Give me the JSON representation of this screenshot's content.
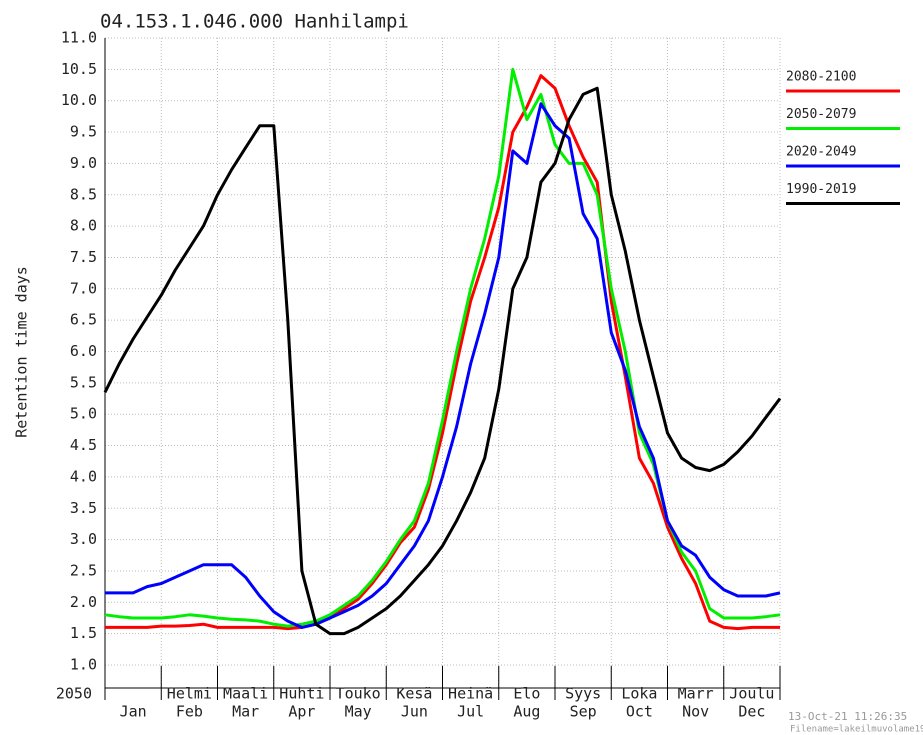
{
  "chart_data": {
    "type": "line",
    "title": "04.153.1.046.000 Hanhilampi",
    "y_label": "Retention time days",
    "year_label": "2050",
    "timestamp": "13-Oct-21 11:26:35",
    "filename": "Filename=lakeilmuvolame19",
    "months": [
      "Jan",
      "Feb",
      "Mar",
      "Apr",
      "May",
      "Jun",
      "Jul",
      "Aug",
      "Sep",
      "Oct",
      "Nov",
      "Dec"
    ],
    "months_fi": [
      null,
      "Helmi",
      "Maali",
      "Huhti",
      "Touko",
      "Kesä",
      "Heinä",
      "Elo",
      "Syys",
      "Loka",
      "Marr",
      "Joulu"
    ],
    "xlim": [
      0,
      12
    ],
    "xticks": [
      0,
      1,
      2,
      3,
      4,
      5,
      6,
      7,
      8,
      9,
      10,
      11,
      12
    ],
    "ylim": [
      1,
      11
    ],
    "yticks": [
      {
        "value": 1,
        "label": "1.0"
      },
      1.5,
      {
        "value": 2,
        "label": "2.0"
      },
      2.5,
      {
        "value": 3,
        "label": "3.0"
      },
      3.5,
      {
        "value": 4,
        "label": "4.0"
      },
      4.5,
      {
        "value": 5,
        "label": "5.0"
      },
      5.5,
      {
        "value": 6,
        "label": "6.0"
      },
      6.5,
      {
        "value": 7,
        "label": "7.0"
      },
      7.5,
      {
        "value": 8,
        "label": "8.0"
      },
      8.5,
      {
        "value": 9,
        "label": "9.0"
      },
      9.5,
      {
        "value": 10,
        "label": "10.0"
      },
      10.5,
      {
        "value": 11,
        "label": "11.0"
      }
    ],
    "grid": true,
    "x": [
      0,
      0.25,
      0.5,
      0.75,
      1,
      1.25,
      1.5,
      1.75,
      2,
      2.25,
      2.5,
      2.75,
      3,
      3.25,
      3.5,
      3.75,
      4,
      4.25,
      4.5,
      4.75,
      5,
      5.25,
      5.5,
      5.75,
      6,
      6.25,
      6.5,
      6.75,
      7,
      7.25,
      7.5,
      7.75,
      8,
      8.25,
      8.5,
      8.75,
      9,
      9.25,
      9.5,
      9.75,
      10,
      10.25,
      10.5,
      10.75,
      11,
      11.25,
      11.5,
      11.75,
      12
    ],
    "series": [
      {
        "name": "2080-2100",
        "color": "#ff0000",
        "values": [
          1.6,
          1.6,
          1.6,
          1.6,
          1.62,
          1.62,
          1.63,
          1.65,
          1.6,
          1.6,
          1.6,
          1.6,
          1.6,
          1.58,
          1.6,
          1.65,
          1.75,
          1.9,
          2.05,
          2.3,
          2.6,
          2.95,
          3.2,
          3.8,
          4.7,
          5.8,
          6.8,
          7.5,
          8.3,
          9.5,
          9.9,
          10.4,
          10.2,
          9.6,
          9.1,
          8.7,
          6.8,
          5.6,
          4.3,
          3.9,
          3.2,
          2.7,
          2.3,
          1.7,
          1.6,
          1.58,
          1.6,
          1.6,
          1.6
        ]
      },
      {
        "name": "2050-2079",
        "color": "#00ee00",
        "values": [
          1.8,
          1.77,
          1.75,
          1.75,
          1.75,
          1.77,
          1.8,
          1.78,
          1.75,
          1.73,
          1.72,
          1.7,
          1.65,
          1.62,
          1.65,
          1.7,
          1.8,
          1.95,
          2.1,
          2.35,
          2.65,
          3.0,
          3.3,
          3.9,
          4.9,
          6.0,
          7.0,
          7.8,
          8.8,
          10.5,
          9.7,
          10.1,
          9.3,
          9.0,
          9.0,
          8.5,
          7.0,
          6.0,
          4.7,
          4.2,
          3.3,
          2.8,
          2.5,
          1.9,
          1.75,
          1.75,
          1.75,
          1.77,
          1.8
        ]
      },
      {
        "name": "2020-2049",
        "color": "#0000ff",
        "values": [
          2.15,
          2.15,
          2.15,
          2.25,
          2.3,
          2.4,
          2.5,
          2.6,
          2.6,
          2.6,
          2.4,
          2.1,
          1.85,
          1.7,
          1.6,
          1.65,
          1.75,
          1.85,
          1.95,
          2.1,
          2.3,
          2.6,
          2.9,
          3.3,
          4.0,
          4.8,
          5.8,
          6.6,
          7.5,
          9.2,
          9.0,
          9.95,
          9.6,
          9.4,
          8.2,
          7.8,
          6.3,
          5.7,
          4.8,
          4.3,
          3.3,
          2.9,
          2.75,
          2.4,
          2.2,
          2.1,
          2.1,
          2.1,
          2.15
        ]
      },
      {
        "name": "1990-2019",
        "color": "#000000",
        "values": [
          5.35,
          5.8,
          6.2,
          6.55,
          6.9,
          7.3,
          7.65,
          8.0,
          8.5,
          8.9,
          9.25,
          9.6,
          9.6,
          6.5,
          2.5,
          1.65,
          1.5,
          1.5,
          1.6,
          1.75,
          1.9,
          2.1,
          2.35,
          2.6,
          2.9,
          3.3,
          3.75,
          4.3,
          5.4,
          7.0,
          7.5,
          8.7,
          9.0,
          9.7,
          10.1,
          10.2,
          8.5,
          7.6,
          6.5,
          5.6,
          4.7,
          4.3,
          4.15,
          4.1,
          4.2,
          4.4,
          4.65,
          4.95,
          5.25
        ]
      }
    ]
  }
}
